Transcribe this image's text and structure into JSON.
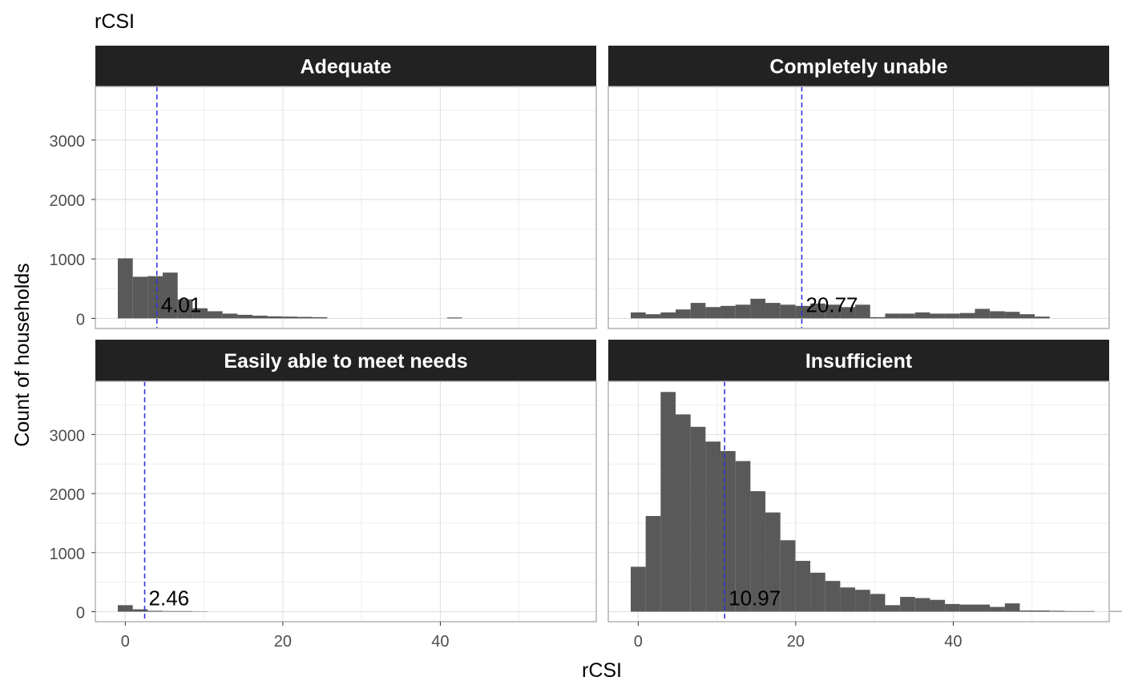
{
  "chart_data": {
    "type": "bar",
    "title": "rCSI",
    "xlabel": "rCSI",
    "ylabel": "Count of households",
    "xlim": [
      -3.8,
      59.8
    ],
    "ylim": [
      -170,
      3900
    ],
    "x_ticks": [
      0,
      20,
      40
    ],
    "y_ticks": [
      0,
      1000,
      2000,
      3000
    ],
    "grid": true,
    "bin_width": 1.9,
    "bin_start": -0.95,
    "colors": {
      "bar": "#595959",
      "strip": "#222222",
      "strip_text": "#ffffff",
      "mean_line": "#3333dd",
      "grid_major": "#dedede",
      "grid_minor": "#eeeeee",
      "panel_border": "#b3b3b3",
      "tick_text": "#4d4d4d"
    },
    "panels": [
      {
        "label": "Adequate",
        "mean": 4.01,
        "mean_label": "4.01",
        "values": [
          1010,
          700,
          710,
          770,
          320,
          170,
          120,
          80,
          60,
          45,
          35,
          30,
          25,
          20,
          0,
          0,
          0,
          0,
          0,
          0,
          0,
          0,
          15
        ]
      },
      {
        "label": "Completely unable",
        "mean": 20.77,
        "mean_label": "20.77",
        "values": [
          100,
          70,
          100,
          150,
          260,
          190,
          210,
          230,
          330,
          260,
          230,
          210,
          250,
          230,
          190,
          230,
          20,
          80,
          80,
          100,
          80,
          80,
          90,
          160,
          120,
          110,
          70,
          30
        ]
      },
      {
        "label": "Easily able to meet needs",
        "mean": 2.46,
        "mean_label": "2.46",
        "values": [
          110,
          40,
          15,
          10,
          10,
          5
        ]
      },
      {
        "label": "Insufficient",
        "mean": 10.97,
        "mean_label": "10.97",
        "values": [
          760,
          1620,
          3720,
          3340,
          3130,
          2880,
          2720,
          2550,
          2040,
          1680,
          1210,
          860,
          660,
          520,
          410,
          370,
          300,
          110,
          250,
          230,
          200,
          130,
          120,
          120,
          80,
          140,
          20,
          20,
          15,
          10,
          10,
          0,
          10
        ]
      }
    ]
  }
}
